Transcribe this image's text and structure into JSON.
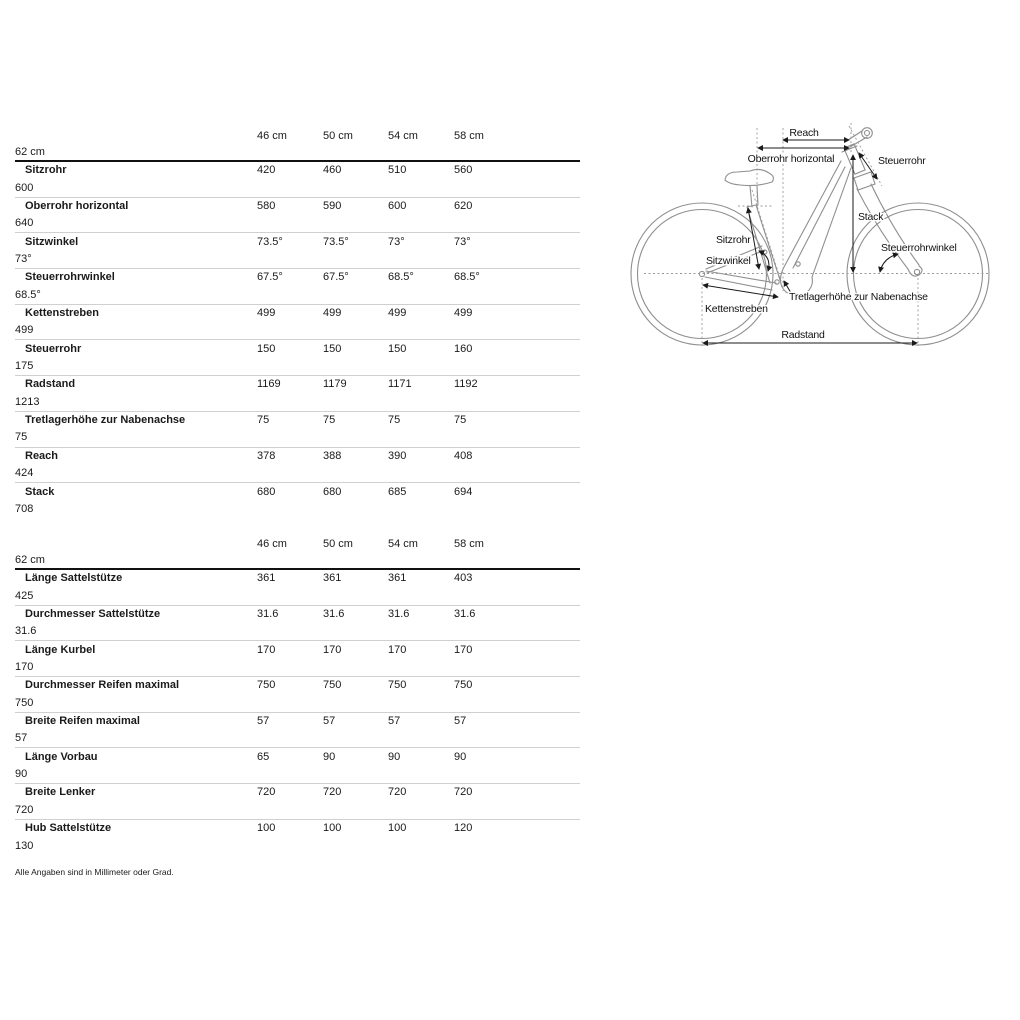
{
  "footnote": "Alle Angaben sind in Millimeter oder Grad.",
  "geometry_table": {
    "columns": [
      "46 cm",
      "50 cm",
      "54 cm",
      "58 cm",
      "62 cm"
    ],
    "rows": [
      {
        "label": "Sitzrohr",
        "values": [
          "420",
          "460",
          "510",
          "560",
          "600"
        ]
      },
      {
        "label": "Oberrohr horizontal",
        "values": [
          "580",
          "590",
          "600",
          "620",
          "640"
        ]
      },
      {
        "label": "Sitzwinkel",
        "values": [
          "73.5°",
          "73.5°",
          "73°",
          "73°",
          "73°"
        ]
      },
      {
        "label": "Steuerrohrwinkel",
        "values": [
          "67.5°",
          "67.5°",
          "68.5°",
          "68.5°",
          "68.5°"
        ]
      },
      {
        "label": "Kettenstreben",
        "values": [
          "499",
          "499",
          "499",
          "499",
          "499"
        ]
      },
      {
        "label": "Steuerrohr",
        "values": [
          "150",
          "150",
          "150",
          "160",
          "175"
        ]
      },
      {
        "label": "Radstand",
        "values": [
          "1169",
          "1179",
          "1171",
          "1192",
          "1213"
        ]
      },
      {
        "label": "Tretlagerhöhe zur Nabenachse",
        "values": [
          "75",
          "75",
          "75",
          "75",
          "75"
        ]
      },
      {
        "label": "Reach",
        "values": [
          "378",
          "388",
          "390",
          "408",
          "424"
        ]
      },
      {
        "label": "Stack",
        "values": [
          "680",
          "680",
          "685",
          "694",
          "708"
        ]
      }
    ]
  },
  "components_table": {
    "columns": [
      "46 cm",
      "50 cm",
      "54 cm",
      "58 cm",
      "62 cm"
    ],
    "rows": [
      {
        "label": "Länge Sattelstütze",
        "values": [
          "361",
          "361",
          "361",
          "403",
          "425"
        ]
      },
      {
        "label": "Durchmesser Sattelstütze",
        "values": [
          "31.6",
          "31.6",
          "31.6",
          "31.6",
          "31.6"
        ]
      },
      {
        "label": "Länge Kurbel",
        "values": [
          "170",
          "170",
          "170",
          "170",
          "170"
        ]
      },
      {
        "label": "Durchmesser Reifen maximal",
        "values": [
          "750",
          "750",
          "750",
          "750",
          "750"
        ]
      },
      {
        "label": "Breite Reifen maximal",
        "values": [
          "57",
          "57",
          "57",
          "57",
          "57"
        ]
      },
      {
        "label": "Länge Vorbau",
        "values": [
          "65",
          "90",
          "90",
          "90",
          "90"
        ]
      },
      {
        "label": "Breite Lenker",
        "values": [
          "720",
          "720",
          "720",
          "720",
          "720"
        ]
      },
      {
        "label": "Hub Sattelstütze",
        "values": [
          "100",
          "100",
          "100",
          "120",
          "130"
        ]
      }
    ]
  },
  "diagram": {
    "labels": {
      "reach": "Reach",
      "oberrohr": "Oberrohr horizontal",
      "steuerrohr": "Steuerrohr",
      "stack": "Stack",
      "sitzrohr": "Sitzrohr",
      "sitzwinkel": "Sitzwinkel",
      "steuerrohrwinkel": "Steuerrohrwinkel",
      "tretlagerhoehe": "Tretlagerhöhe zur Nabenachse",
      "kettenstreben": "Kettenstreben",
      "radstand": "Radstand"
    }
  },
  "colors": {
    "text": "#1a1a1a",
    "rule_heavy": "#111111",
    "rule_light": "#d0d0d0",
    "bike_line": "#8f8f8f"
  }
}
